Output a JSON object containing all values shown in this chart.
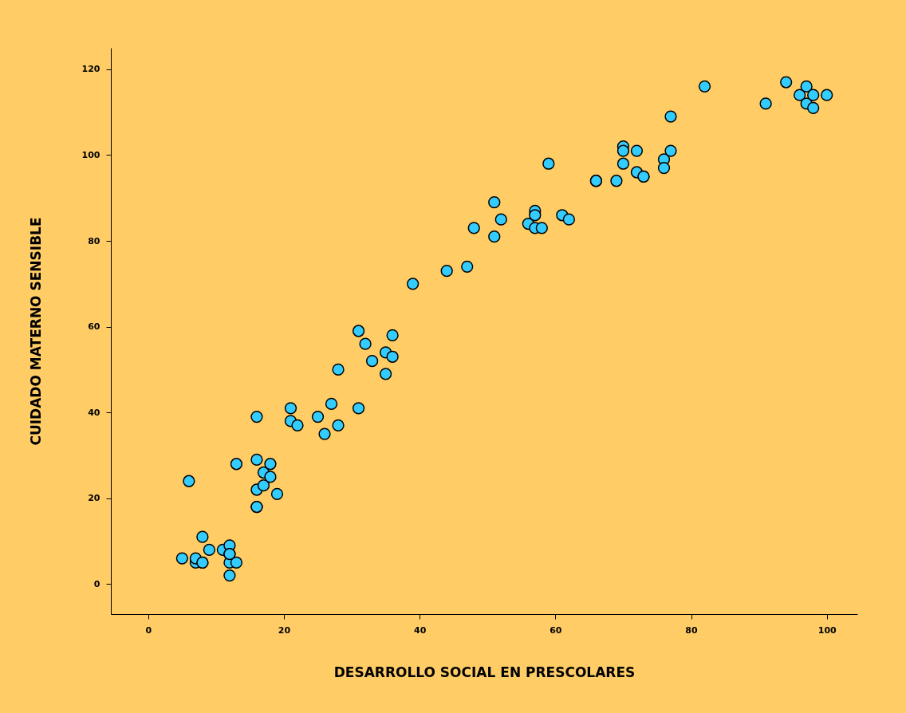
{
  "chart_data": {
    "type": "scatter",
    "xlabel": "DESARROLLO SOCIAL EN PRESCOLARES",
    "ylabel": "CUIDADO MATERNO SENSIBLE",
    "xlim": [
      -5.5,
      104.5
    ],
    "ylim": [
      -7,
      125
    ],
    "xticks": [
      0,
      20,
      40,
      60,
      80,
      100
    ],
    "yticks": [
      0,
      20,
      40,
      60,
      80,
      100,
      120
    ],
    "grid": false,
    "marker": "circle",
    "series": [
      {
        "color": "#33ccff",
        "x": [
          5,
          7,
          7,
          8,
          8,
          8,
          9,
          11,
          12,
          12,
          12,
          12,
          13,
          6,
          12,
          13,
          16,
          16,
          16,
          16,
          16,
          17,
          17,
          18,
          18,
          19,
          21,
          21,
          22,
          25,
          26,
          27,
          28,
          28,
          31,
          31,
          32,
          33,
          35,
          35,
          36,
          36,
          39,
          44,
          47,
          48,
          51,
          51,
          52,
          56,
          57,
          57,
          57,
          58,
          59,
          61,
          62,
          66,
          66,
          69,
          70,
          70,
          70,
          72,
          72,
          73,
          73,
          76,
          76,
          77,
          77,
          82,
          91,
          94,
          96,
          97,
          97,
          98,
          98,
          100
        ],
        "values": [
          6,
          5,
          6,
          5,
          5,
          11,
          8,
          8,
          9,
          7,
          5,
          2,
          5,
          24,
          7,
          28,
          29,
          22,
          18,
          18,
          39,
          26,
          23,
          28,
          25,
          21,
          41,
          38,
          37,
          39,
          35,
          42,
          37,
          50,
          59,
          41,
          56,
          52,
          54,
          49,
          58,
          53,
          70,
          73,
          74,
          83,
          89,
          81,
          85,
          84,
          87,
          86,
          83,
          83,
          98,
          86,
          85,
          94,
          94,
          94,
          102,
          101,
          98,
          101,
          96,
          95,
          95,
          99,
          97,
          109,
          101,
          116,
          112,
          117,
          114,
          116,
          112,
          114,
          111,
          114
        ]
      }
    ]
  }
}
